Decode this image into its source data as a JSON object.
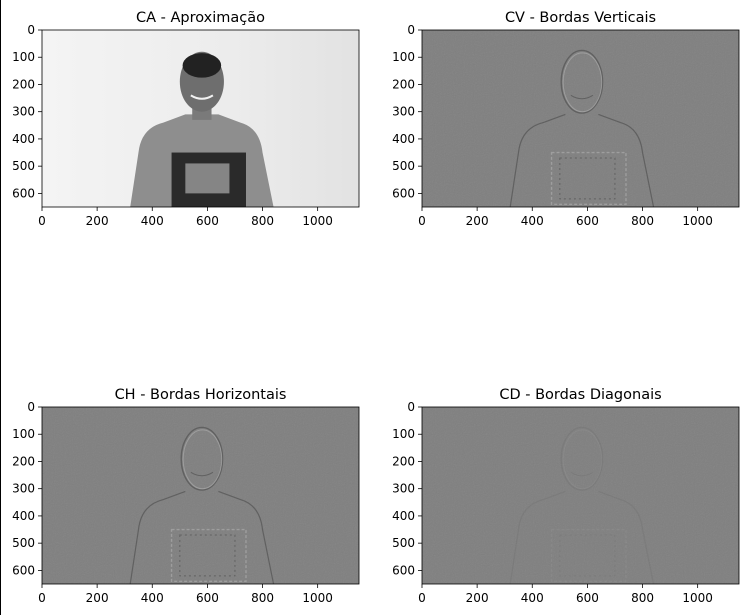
{
  "chart_data": [
    {
      "type": "image",
      "title": "CA - Aproximação",
      "xlim": [
        0,
        1150
      ],
      "ylim": [
        650,
        0
      ],
      "xticks": [
        0,
        200,
        400,
        600,
        800,
        1000
      ],
      "yticks": [
        0,
        100,
        200,
        300,
        400,
        500,
        600
      ],
      "colormap": "gray"
    },
    {
      "type": "image",
      "title": "CV - Bordas Verticais",
      "xlim": [
        0,
        1150
      ],
      "ylim": [
        650,
        0
      ],
      "xticks": [
        0,
        200,
        400,
        600,
        800,
        1000
      ],
      "yticks": [
        0,
        100,
        200,
        300,
        400,
        500,
        600
      ],
      "colormap": "gray"
    },
    {
      "type": "image",
      "title": "CH - Bordas Horizontais",
      "xlim": [
        0,
        1150
      ],
      "ylim": [
        650,
        0
      ],
      "xticks": [
        0,
        200,
        400,
        600,
        800,
        1000
      ],
      "yticks": [
        0,
        100,
        200,
        300,
        400,
        500,
        600
      ],
      "colormap": "gray"
    },
    {
      "type": "image",
      "title": "CD - Bordas Diagonais",
      "xlim": [
        0,
        1150
      ],
      "ylim": [
        650,
        0
      ],
      "xticks": [
        0,
        200,
        400,
        600,
        800,
        1000
      ],
      "yticks": [
        0,
        100,
        200,
        300,
        400,
        500,
        600
      ],
      "colormap": "gray"
    }
  ]
}
